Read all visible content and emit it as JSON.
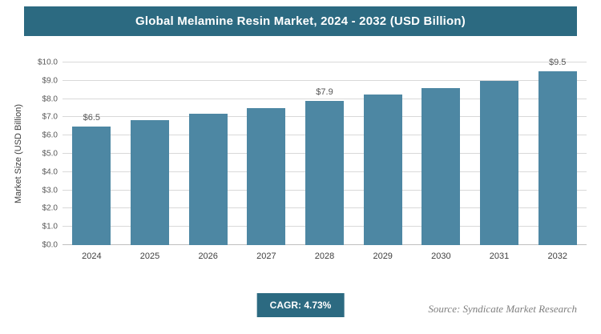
{
  "header": {
    "title": "Global Melamine Resin Market, 2024 - 2032 (USD Billion)"
  },
  "chart_data": {
    "type": "bar",
    "title": "Global Melamine Resin Market, 2024 - 2032 (USD Billion)",
    "categories": [
      "2024",
      "2025",
      "2026",
      "2027",
      "2028",
      "2029",
      "2030",
      "2031",
      "2032"
    ],
    "values": [
      6.5,
      6.85,
      7.2,
      7.5,
      7.9,
      8.25,
      8.6,
      9.0,
      9.5
    ],
    "point_labels": [
      "$6.5",
      null,
      null,
      null,
      "$7.9",
      null,
      null,
      null,
      "$9.5"
    ],
    "xlabel": "",
    "ylabel": "Market Size (USD Billion)",
    "ylim": [
      0,
      10
    ],
    "ytick_values": [
      0,
      1,
      2,
      3,
      4,
      5,
      6,
      7,
      8,
      9,
      10
    ],
    "ytick_labels": [
      "$0.0",
      "$1.0",
      "$2.0",
      "$3.0",
      "$4.0",
      "$5.0",
      "$6.0",
      "$7.0",
      "$8.0",
      "$9.0",
      "$10.0"
    ],
    "grid": true,
    "legend": false,
    "bar_color": "#4d87a3"
  },
  "footer": {
    "cagr_label": "CAGR: 4.73%",
    "source": "Source: Syndicate Market Research"
  },
  "colors": {
    "accent": "#2c6a81",
    "bar": "#4d87a3",
    "gridline": "#d9d9d9"
  }
}
